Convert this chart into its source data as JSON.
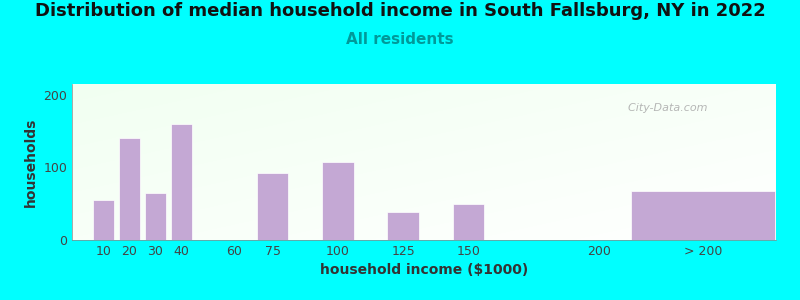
{
  "title": "Distribution of median household income in South Fallsburg, NY in 2022",
  "subtitle": "All residents",
  "xlabel": "household income ($1000)",
  "ylabel": "households",
  "background_outer": "#00FFFF",
  "bar_color": "#C4A8D4",
  "watermark": "  City-Data.com",
  "bar_labels": [
    "10",
    "20",
    "30",
    "40",
    "60",
    "75",
    "100",
    "125",
    "150",
    "200",
    "> 200"
  ],
  "bar_centers": [
    10,
    20,
    30,
    40,
    60,
    75,
    100,
    125,
    150,
    200,
    240
  ],
  "bar_widths": [
    8,
    8,
    8,
    8,
    8,
    12,
    12,
    12,
    12,
    8,
    55
  ],
  "values": [
    55,
    140,
    65,
    160,
    0,
    92,
    107,
    38,
    50,
    0,
    68
  ],
  "xlim": [
    -2,
    268
  ],
  "ylim": [
    0,
    215
  ],
  "yticks": [
    0,
    100,
    200
  ],
  "title_fontsize": 13,
  "subtitle_fontsize": 11,
  "label_fontsize": 10,
  "tick_fontsize": 9
}
